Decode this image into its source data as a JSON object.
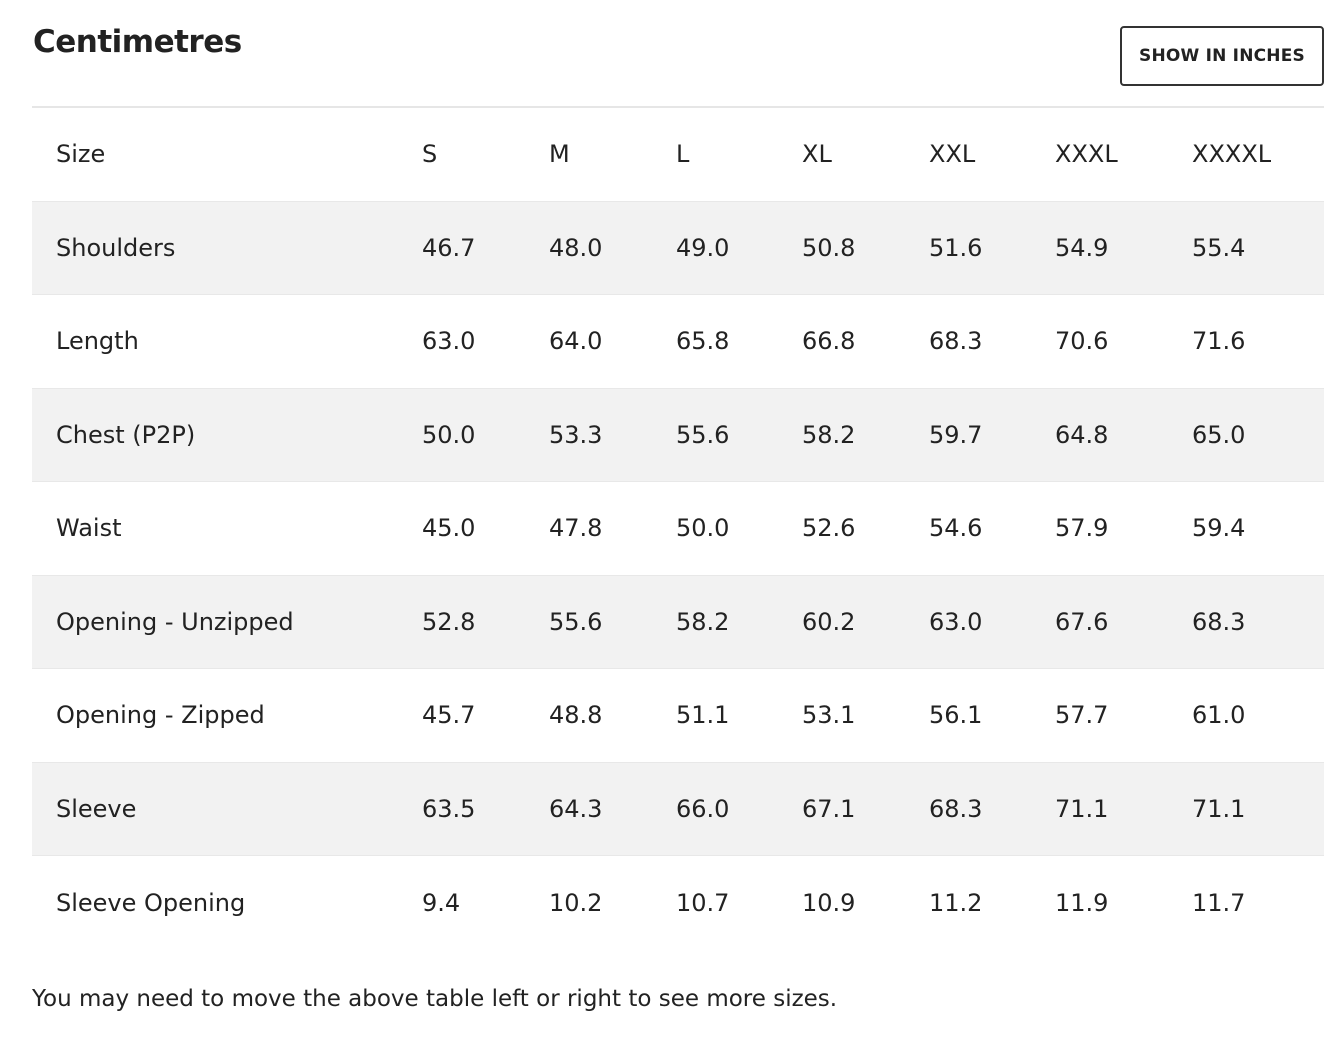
{
  "title": "Centimetres",
  "toggle_button": {
    "label": "SHOW IN INCHES"
  },
  "table": {
    "header_label": "Size",
    "sizes": [
      "S",
      "M",
      "L",
      "XL",
      "XXL",
      "XXXL",
      "XXXXL"
    ],
    "rows": [
      {
        "label": "Shoulders",
        "values": [
          "46.7",
          "48.0",
          "49.0",
          "50.8",
          "51.6",
          "54.9",
          "55.4"
        ]
      },
      {
        "label": "Length",
        "values": [
          "63.0",
          "64.0",
          "65.8",
          "66.8",
          "68.3",
          "70.6",
          "71.6"
        ]
      },
      {
        "label": "Chest (P2P)",
        "values": [
          "50.0",
          "53.3",
          "55.6",
          "58.2",
          "59.7",
          "64.8",
          "65.0"
        ]
      },
      {
        "label": "Waist",
        "values": [
          "45.0",
          "47.8",
          "50.0",
          "52.6",
          "54.6",
          "57.9",
          "59.4"
        ]
      },
      {
        "label": "Opening - Unzipped",
        "values": [
          "52.8",
          "55.6",
          "58.2",
          "60.2",
          "63.0",
          "67.6",
          "68.3"
        ]
      },
      {
        "label": "Opening - Zipped",
        "values": [
          "45.7",
          "48.8",
          "51.1",
          "53.1",
          "56.1",
          "57.7",
          "61.0"
        ]
      },
      {
        "label": "Sleeve",
        "values": [
          "63.5",
          "64.3",
          "66.0",
          "67.1",
          "68.3",
          "71.1",
          "71.1"
        ]
      },
      {
        "label": "Sleeve Opening",
        "values": [
          "9.4",
          "10.2",
          "10.7",
          "10.9",
          "11.2",
          "11.9",
          "11.7"
        ]
      }
    ]
  },
  "footnote": "You may need to move the above table left or right to see more sizes."
}
